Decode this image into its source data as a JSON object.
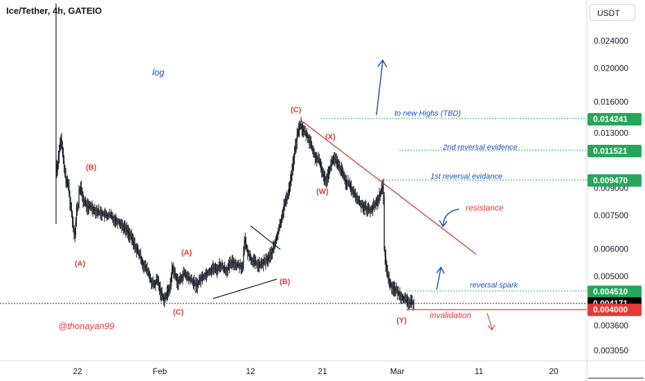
{
  "header": {
    "title": "Ice/Tether, 4h, GATEIO",
    "currency": "USDT"
  },
  "chart_data": {
    "type": "candlestick",
    "scale": "log",
    "symbol": "Ice/Tether",
    "interval": "4h",
    "exchange": "GATEIO",
    "y_axis": {
      "ticks": [
        "0.024000",
        "0.020000",
        "0.016000",
        "0.013000",
        "0.009000",
        "0.007500",
        "0.006000",
        "0.005000",
        "0.003600",
        "0.003050"
      ],
      "tick_values": [
        0.024,
        0.02,
        0.016,
        0.013,
        0.009,
        0.0075,
        0.006,
        0.005,
        0.0036,
        0.00305
      ]
    },
    "x_axis": {
      "ticks": [
        "22",
        "Feb",
        "12",
        "21",
        "Mar",
        "11",
        "20"
      ]
    },
    "price_levels": [
      {
        "label": "0.014241",
        "value": 0.014241,
        "color": "#26a65b"
      },
      {
        "label": "0.011521",
        "value": 0.011521,
        "color": "#26a65b"
      },
      {
        "label": "0.009470",
        "value": 0.00947,
        "color": "#26a65b"
      },
      {
        "label": "0.004510",
        "value": 0.00451,
        "color": "#26a65b"
      },
      {
        "label": "0.004171",
        "value": 0.004171,
        "color": "#000000"
      },
      {
        "label": "0.004000",
        "value": 0.004,
        "color": "#e53935"
      }
    ],
    "close_path": [
      [
        0,
        0.01
      ],
      [
        3,
        0.0118
      ],
      [
        5,
        0.0125
      ],
      [
        8,
        0.0108
      ],
      [
        10,
        0.0098
      ],
      [
        12,
        0.0093
      ],
      [
        14,
        0.0092
      ],
      [
        16,
        0.0082
      ],
      [
        18,
        0.0076
      ],
      [
        20,
        0.0069
      ],
      [
        22,
        0.0066
      ],
      [
        24,
        0.0078
      ],
      [
        26,
        0.008
      ],
      [
        27,
        0.0089
      ],
      [
        29,
        0.009
      ],
      [
        32,
        0.0083
      ],
      [
        35,
        0.0081
      ],
      [
        38,
        0.0079
      ],
      [
        41,
        0.008
      ],
      [
        45,
        0.0078
      ],
      [
        50,
        0.0077
      ],
      [
        55,
        0.0076
      ],
      [
        60,
        0.0075
      ],
      [
        65,
        0.0075
      ],
      [
        70,
        0.0073
      ],
      [
        75,
        0.0072
      ],
      [
        80,
        0.007
      ],
      [
        85,
        0.0068
      ],
      [
        90,
        0.0065
      ],
      [
        95,
        0.0061
      ],
      [
        100,
        0.0058
      ],
      [
        105,
        0.0054
      ],
      [
        110,
        0.0052
      ],
      [
        115,
        0.0048
      ],
      [
        118,
        0.0047
      ],
      [
        122,
        0.0049
      ],
      [
        126,
        0.0045
      ],
      [
        130,
        0.0043
      ],
      [
        133,
        0.0044
      ],
      [
        136,
        0.0046
      ],
      [
        138,
        0.0047
      ],
      [
        140,
        0.0053
      ],
      [
        143,
        0.0051
      ],
      [
        147,
        0.0048
      ],
      [
        150,
        0.0049
      ],
      [
        154,
        0.0051
      ],
      [
        158,
        0.005
      ],
      [
        162,
        0.0049
      ],
      [
        166,
        0.0048
      ],
      [
        170,
        0.0047
      ],
      [
        174,
        0.0049
      ],
      [
        178,
        0.005
      ],
      [
        182,
        0.0051
      ],
      [
        186,
        0.0052
      ],
      [
        190,
        0.0053
      ],
      [
        194,
        0.0052
      ],
      [
        198,
        0.0054
      ],
      [
        202,
        0.0053
      ],
      [
        206,
        0.0052
      ],
      [
        210,
        0.0054
      ],
      [
        214,
        0.0055
      ],
      [
        218,
        0.0054
      ],
      [
        222,
        0.0054
      ],
      [
        226,
        0.0053
      ],
      [
        228,
        0.0064
      ],
      [
        230,
        0.0061
      ],
      [
        233,
        0.0058
      ],
      [
        236,
        0.0056
      ],
      [
        240,
        0.0055
      ],
      [
        244,
        0.0054
      ],
      [
        248,
        0.0054
      ],
      [
        252,
        0.0055
      ],
      [
        256,
        0.0056
      ],
      [
        260,
        0.0058
      ],
      [
        264,
        0.0061
      ],
      [
        268,
        0.0066
      ],
      [
        272,
        0.0072
      ],
      [
        276,
        0.008
      ],
      [
        280,
        0.0085
      ],
      [
        284,
        0.0095
      ],
      [
        288,
        0.011
      ],
      [
        292,
        0.0128
      ],
      [
        296,
        0.0138
      ],
      [
        298,
        0.0134
      ],
      [
        300,
        0.0131
      ],
      [
        303,
        0.0129
      ],
      [
        306,
        0.0125
      ],
      [
        309,
        0.012
      ],
      [
        312,
        0.0113
      ],
      [
        315,
        0.011
      ],
      [
        318,
        0.0108
      ],
      [
        321,
        0.0104
      ],
      [
        324,
        0.0097
      ],
      [
        327,
        0.0095
      ],
      [
        330,
        0.01
      ],
      [
        333,
        0.0105
      ],
      [
        336,
        0.011
      ],
      [
        339,
        0.0108
      ],
      [
        342,
        0.0104
      ],
      [
        345,
        0.0102
      ],
      [
        348,
        0.0098
      ],
      [
        351,
        0.0094
      ],
      [
        354,
        0.0093
      ],
      [
        357,
        0.009
      ],
      [
        360,
        0.0088
      ],
      [
        363,
        0.0085
      ],
      [
        366,
        0.0083
      ],
      [
        369,
        0.0081
      ],
      [
        372,
        0.008
      ],
      [
        375,
        0.0079
      ],
      [
        378,
        0.0078
      ],
      [
        381,
        0.0078
      ],
      [
        384,
        0.0079
      ],
      [
        387,
        0.0081
      ],
      [
        390,
        0.0083
      ],
      [
        392,
        0.0086
      ],
      [
        394,
        0.0088
      ],
      [
        396,
        0.0091
      ],
      [
        397,
        0.0085
      ],
      [
        398,
        0.006
      ],
      [
        400,
        0.0054
      ],
      [
        403,
        0.0049
      ],
      [
        406,
        0.0047
      ],
      [
        410,
        0.0046
      ],
      [
        414,
        0.0045
      ],
      [
        418,
        0.0044
      ],
      [
        422,
        0.0043
      ],
      [
        426,
        0.0042
      ],
      [
        430,
        0.0042
      ],
      [
        434,
        0.0042
      ]
    ]
  },
  "annotations": {
    "log_label": "log",
    "author": "@thonayan99",
    "waves": [
      "(A)",
      "(B)",
      "(C)",
      "(A)",
      "(B)",
      "(C)",
      "(W)",
      "(X)",
      "(Y)"
    ],
    "to_new_highs": "to new Highs (TBD)",
    "second_reversal": "2nd reversal evidence",
    "first_reversal": "1st reversal evidance",
    "resistance": "resistance",
    "reversal_spark": "reversal spark",
    "invalidation": "invalidation"
  },
  "colors": {
    "candles": "#131722",
    "resistance": "#c62828",
    "blue": "#1e4fb5",
    "green_dotted": "#26a65b",
    "red": "#e53935"
  }
}
